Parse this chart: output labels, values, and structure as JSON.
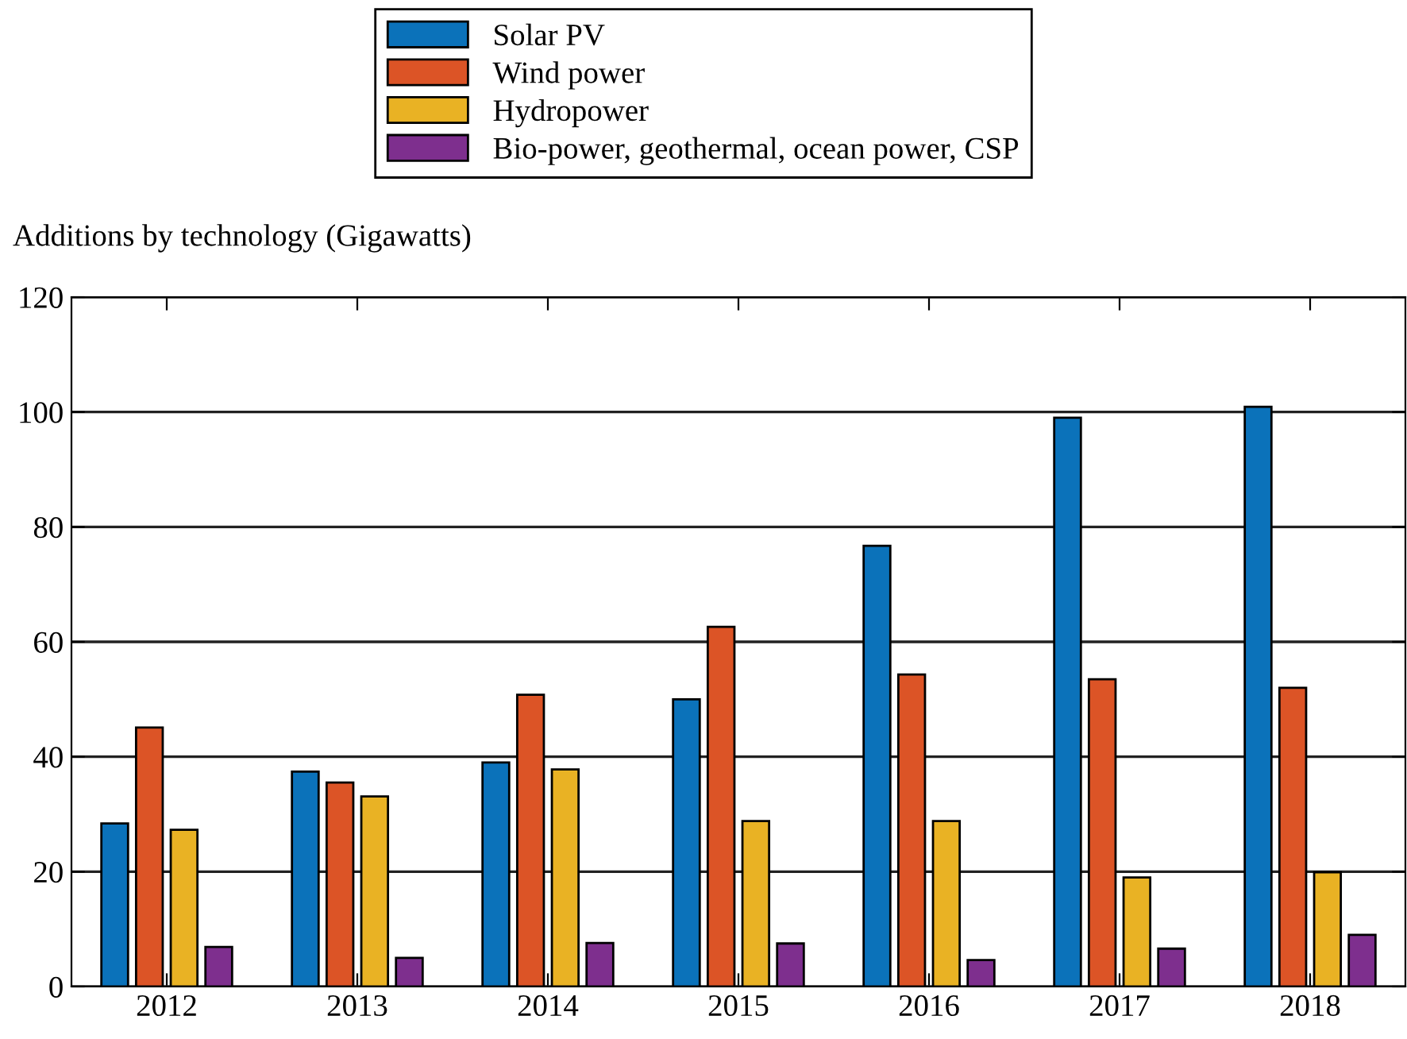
{
  "chart_data": {
    "type": "bar",
    "ylabel": "Additions by technology (Gigawatts)",
    "categories": [
      "2012",
      "2013",
      "2014",
      "2015",
      "2016",
      "2017",
      "2018"
    ],
    "series": [
      {
        "name": "Solar PV",
        "color": "#0b72ba",
        "values": [
          28.4,
          37.4,
          39.0,
          50.0,
          76.7,
          99.0,
          100.9
        ]
      },
      {
        "name": "Wind power",
        "color": "#dc5426",
        "values": [
          45.1,
          35.5,
          50.8,
          62.6,
          54.3,
          53.5,
          52.0
        ]
      },
      {
        "name": "Hydropower",
        "color": "#e9b224",
        "values": [
          27.3,
          33.1,
          37.8,
          28.8,
          28.8,
          19.0,
          19.9
        ]
      },
      {
        "name": "Bio-power, geothermal, ocean power, CSP",
        "color": "#7e2f8e",
        "values": [
          6.9,
          5.0,
          7.6,
          7.5,
          4.6,
          6.6,
          9.0
        ]
      }
    ],
    "ylim": [
      0,
      120
    ],
    "yticks": [
      0,
      20,
      40,
      60,
      80,
      100,
      120
    ],
    "grid": "y",
    "legend": "top"
  }
}
